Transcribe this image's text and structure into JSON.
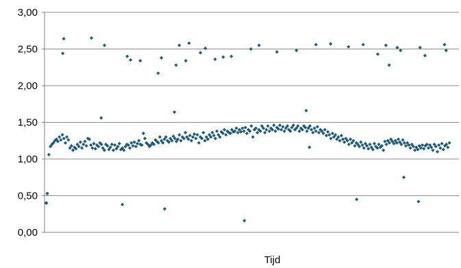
{
  "chart_data": {
    "type": "scatter",
    "title": "",
    "xlabel": "Tijd",
    "ylabel": "",
    "ylim": [
      0,
      3
    ],
    "yticks": [
      "0,00",
      "0,50",
      "1,00",
      "1,50",
      "2,00",
      "2,50",
      "3,00"
    ],
    "grid": true,
    "legend": "none",
    "marker_color": "#1f5a78",
    "series": [
      {
        "values": [
          0.4,
          0.53,
          1.06,
          1.17,
          1.2,
          1.22,
          1.25,
          1.27,
          1.24,
          1.3,
          1.26,
          1.33,
          1.28,
          1.22,
          1.3,
          1.26,
          1.15,
          1.18,
          1.12,
          1.16,
          1.14,
          1.2,
          1.17,
          1.23,
          1.15,
          1.2,
          1.24,
          1.18,
          1.28,
          1.27,
          1.19,
          1.15,
          1.21,
          1.14,
          1.19,
          1.17,
          1.22,
          1.2,
          1.15,
          1.12,
          1.2,
          1.18,
          1.13,
          1.16,
          1.2,
          1.12,
          1.19,
          1.14,
          1.17,
          1.21,
          1.13,
          1.15,
          1.12,
          1.17,
          1.2,
          1.19,
          1.15,
          1.22,
          1.18,
          1.23,
          1.17,
          1.21,
          1.25,
          1.2,
          1.19,
          1.35,
          1.28,
          1.22,
          1.2,
          1.17,
          1.19,
          1.22,
          1.2,
          1.26,
          1.24,
          1.22,
          1.3,
          1.25,
          1.22,
          1.27,
          1.3,
          1.25,
          1.23,
          1.28,
          1.25,
          1.31,
          1.28,
          1.24,
          1.27,
          1.33,
          1.25,
          1.3,
          1.28,
          1.36,
          1.3,
          1.27,
          1.32,
          1.25,
          1.3,
          1.34,
          1.28,
          1.33,
          1.22,
          1.3,
          1.28,
          1.36,
          1.25,
          1.3,
          1.27,
          1.33,
          1.3,
          1.36,
          1.32,
          1.28,
          1.38,
          1.33,
          1.3,
          1.37,
          1.35,
          1.4,
          1.33,
          1.38,
          1.36,
          1.35,
          1.4,
          1.37,
          1.38,
          1.42,
          1.36,
          1.4,
          1.37,
          1.42,
          1.38,
          1.43,
          1.35,
          1.4,
          1.38,
          1.45,
          1.3,
          1.4,
          1.42,
          1.36,
          1.4,
          1.38,
          1.45,
          1.42,
          1.36,
          1.4,
          1.45,
          1.38,
          1.42,
          1.4,
          1.46,
          1.38,
          1.43,
          1.41,
          1.46,
          1.4,
          1.44,
          1.38,
          1.42,
          1.45,
          1.4,
          1.38,
          1.43,
          1.46,
          1.4,
          1.42,
          1.45,
          1.38,
          1.42,
          1.4,
          1.45,
          1.43,
          1.38,
          1.42,
          1.45,
          1.4,
          1.36,
          1.42,
          1.38,
          1.44,
          1.36,
          1.4,
          1.38,
          1.35,
          1.4,
          1.32,
          1.37,
          1.33,
          1.28,
          1.35,
          1.3,
          1.33,
          1.27,
          1.3,
          1.25,
          1.32,
          1.27,
          1.23,
          1.28,
          1.25,
          1.2,
          1.27,
          1.22,
          1.25,
          1.18,
          1.22,
          1.2,
          1.17,
          1.23,
          1.19,
          1.15,
          1.21,
          1.18,
          1.14,
          1.2,
          1.16,
          1.13,
          1.21,
          1.17,
          1.15,
          1.2,
          1.16,
          1.18,
          1.12,
          1.24,
          1.2,
          1.25,
          1.22,
          1.27,
          1.24,
          1.21,
          1.25,
          1.22,
          1.27,
          1.23,
          1.2,
          1.26,
          1.22,
          1.18,
          1.22,
          1.19,
          1.15,
          1.2,
          1.17,
          1.12,
          1.16,
          1.13,
          1.18,
          1.15,
          1.19,
          1.14,
          1.18,
          1.2,
          1.15,
          1.19,
          1.16,
          1.12,
          1.2,
          1.17,
          1.1,
          1.19,
          1.15,
          1.21,
          1.13,
          1.18,
          1.2,
          1.16,
          1.22
        ],
        "outliers": [
          [
            0.02,
            0.4
          ],
          [
            0.04,
            0.53
          ],
          [
            0.52,
            2.44
          ],
          [
            0.55,
            2.64
          ],
          [
            1.4,
            2.65
          ],
          [
            1.7,
            1.56
          ],
          [
            1.8,
            2.55
          ],
          [
            2.35,
            0.38
          ],
          [
            2.5,
            2.4
          ],
          [
            2.6,
            2.35
          ],
          [
            2.9,
            2.34
          ],
          [
            3.45,
            2.17
          ],
          [
            3.55,
            2.38
          ],
          [
            3.65,
            0.32
          ],
          [
            3.95,
            1.64
          ],
          [
            4.0,
            2.28
          ],
          [
            4.1,
            2.55
          ],
          [
            4.3,
            2.34
          ],
          [
            4.4,
            2.58
          ],
          [
            4.75,
            2.45
          ],
          [
            4.9,
            2.51
          ],
          [
            5.2,
            2.36
          ],
          [
            5.45,
            2.39
          ],
          [
            5.7,
            2.4
          ],
          [
            6.1,
            0.16
          ],
          [
            6.3,
            2.5
          ],
          [
            6.55,
            2.55
          ],
          [
            7.1,
            2.46
          ],
          [
            7.7,
            2.48
          ],
          [
            8.0,
            1.66
          ],
          [
            8.1,
            1.16
          ],
          [
            8.3,
            2.56
          ],
          [
            8.75,
            2.57
          ],
          [
            9.3,
            2.53
          ],
          [
            9.55,
            0.45
          ],
          [
            9.75,
            2.56
          ],
          [
            10.2,
            2.43
          ],
          [
            10.45,
            2.55
          ],
          [
            10.55,
            2.28
          ],
          [
            10.8,
            2.52
          ],
          [
            10.9,
            2.48
          ],
          [
            11.0,
            0.75
          ],
          [
            11.45,
            0.42
          ],
          [
            11.5,
            2.52
          ],
          [
            11.65,
            2.41
          ],
          [
            12.25,
            2.56
          ],
          [
            12.3,
            2.48
          ]
        ]
      }
    ]
  }
}
